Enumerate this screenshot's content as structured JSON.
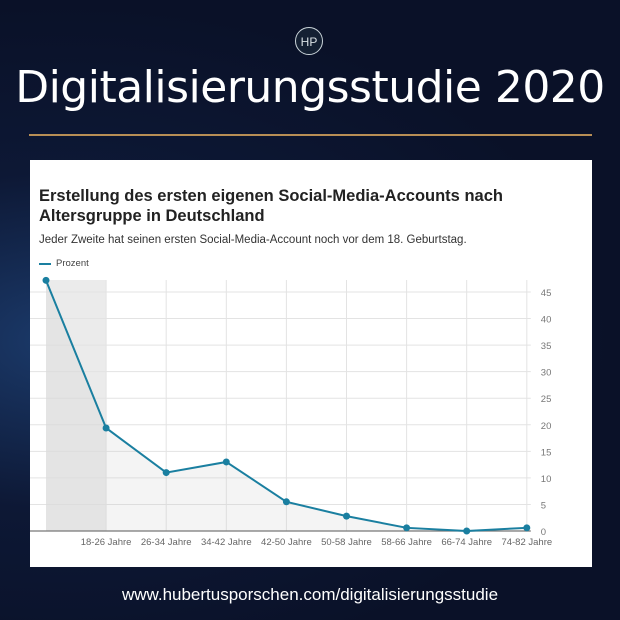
{
  "header": {
    "logo_text": "HP",
    "title": "Digitalisierungsstudie 2020"
  },
  "colors": {
    "line": "#1a7fa0",
    "accent_rule": "#b88e55"
  },
  "chart_data": {
    "type": "line",
    "title": "Erstellung des ersten eigenen Social-Media-Accounts nach Altersgruppe in Deutschland",
    "subtitle": "Jeder Zweite hat seinen ersten Social-Media-Account noch vor dem 18. Geburtstag.",
    "categories": [
      "",
      "18-26 Jahre",
      "26-34 Jahre",
      "34-42 Jahre",
      "42-50 Jahre",
      "50-58 Jahre",
      "58-66 Jahre",
      "66-74 Jahre",
      "74-82 Jahre"
    ],
    "series": [
      {
        "name": "Prozent",
        "values": [
          47.2,
          19.4,
          11,
          13,
          5.5,
          2.8,
          0.6,
          0,
          0.6
        ]
      }
    ],
    "ylim": [
      0,
      45
    ],
    "yticks": [
      0,
      5,
      10,
      15,
      20,
      25,
      30,
      35,
      40,
      45
    ],
    "grid": true,
    "legend": "top-left",
    "y_axis_side": "right",
    "highlighted_category": 0
  },
  "footer": {
    "url": "www.hubertusporschen.com/digitalisierungsstudie"
  }
}
